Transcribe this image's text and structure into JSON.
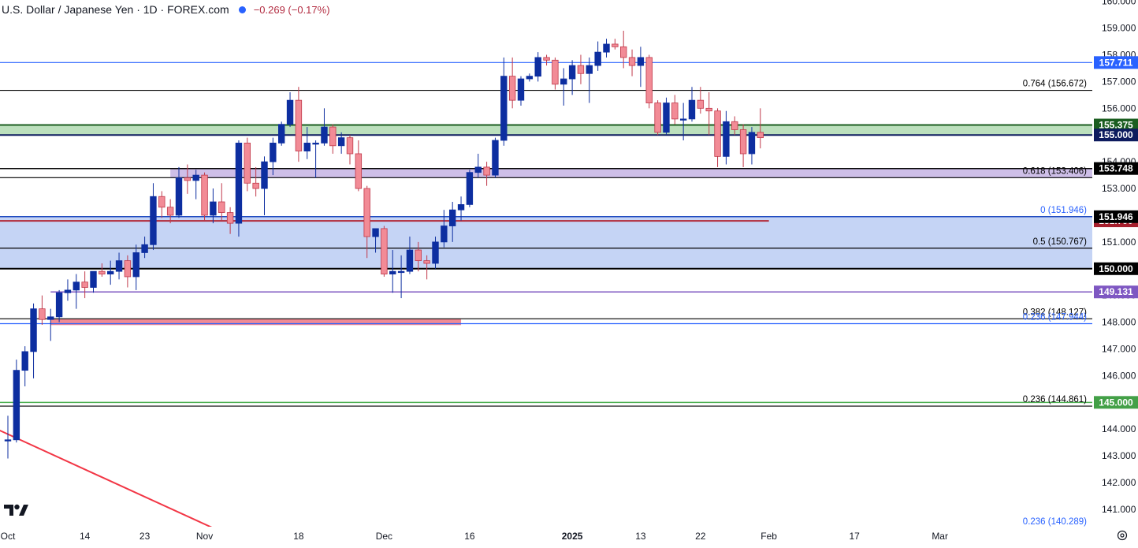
{
  "legend": {
    "title": "U.S. Dollar / Japanese Yen · 1D · FOREX.com",
    "change": "−0.269 (−0.17%)"
  },
  "logo": "TV",
  "chart_data": {
    "type": "candlestick",
    "y_range": [
      140.35,
      160.05
    ],
    "y_ticks": [
      141,
      142,
      143,
      144,
      145,
      146,
      147,
      148,
      149,
      150,
      151,
      152,
      153,
      154,
      155,
      156,
      157,
      158,
      159,
      160
    ],
    "x_labels": [
      {
        "label": "Oct",
        "date": "2024-10-01",
        "bold": false
      },
      {
        "label": "14",
        "date": "2024-10-14",
        "bold": false
      },
      {
        "label": "23",
        "date": "2024-10-23",
        "bold": false
      },
      {
        "label": "Nov",
        "date": "2024-11-01",
        "bold": false
      },
      {
        "label": "18",
        "date": "2024-11-18",
        "bold": false
      },
      {
        "label": "Dec",
        "date": "2024-12-02",
        "bold": false
      },
      {
        "label": "16",
        "date": "2024-12-16",
        "bold": false
      },
      {
        "label": "2025",
        "date": "2025-01-01",
        "bold": true
      },
      {
        "label": "13",
        "date": "2025-01-13",
        "bold": false
      },
      {
        "label": "22",
        "date": "2025-01-22",
        "bold": false
      },
      {
        "label": "Feb",
        "date": "2025-02-03",
        "bold": false
      },
      {
        "label": "17",
        "date": "2025-02-17",
        "bold": false
      },
      {
        "label": "Mar",
        "date": "2025-03-03",
        "bold": false
      }
    ],
    "candles": [
      {
        "o": 143.6,
        "h": 144.5,
        "l": 142.9,
        "c": 143.6
      },
      {
        "o": 143.6,
        "h": 146.6,
        "l": 143.5,
        "c": 146.2
      },
      {
        "o": 146.2,
        "h": 147.1,
        "l": 145.6,
        "c": 146.9
      },
      {
        "o": 146.9,
        "h": 148.7,
        "l": 145.9,
        "c": 148.5
      },
      {
        "o": 148.5,
        "h": 149.0,
        "l": 147.9,
        "c": 148.1
      },
      {
        "o": 148.1,
        "h": 148.5,
        "l": 147.3,
        "c": 148.2
      },
      {
        "o": 148.2,
        "h": 149.2,
        "l": 148.0,
        "c": 149.1
      },
      {
        "o": 149.1,
        "h": 149.6,
        "l": 148.8,
        "c": 149.2
      },
      {
        "o": 149.2,
        "h": 149.8,
        "l": 148.5,
        "c": 149.5
      },
      {
        "o": 149.5,
        "h": 149.9,
        "l": 148.9,
        "c": 149.3
      },
      {
        "o": 149.3,
        "h": 149.9,
        "l": 149.1,
        "c": 149.9
      },
      {
        "o": 149.9,
        "h": 150.2,
        "l": 149.7,
        "c": 149.8
      },
      {
        "o": 149.8,
        "h": 150.3,
        "l": 149.4,
        "c": 149.9
      },
      {
        "o": 149.9,
        "h": 150.6,
        "l": 149.6,
        "c": 150.3
      },
      {
        "o": 150.3,
        "h": 150.5,
        "l": 149.3,
        "c": 149.7
      },
      {
        "o": 149.7,
        "h": 150.9,
        "l": 149.2,
        "c": 150.6
      },
      {
        "o": 150.6,
        "h": 151.2,
        "l": 150.4,
        "c": 150.9
      },
      {
        "o": 150.9,
        "h": 153.2,
        "l": 150.7,
        "c": 152.7
      },
      {
        "o": 152.7,
        "h": 152.9,
        "l": 151.9,
        "c": 152.3
      },
      {
        "o": 152.3,
        "h": 152.6,
        "l": 151.7,
        "c": 152.0
      },
      {
        "o": 152.0,
        "h": 153.8,
        "l": 151.9,
        "c": 153.4
      },
      {
        "o": 153.4,
        "h": 153.9,
        "l": 152.8,
        "c": 153.3
      },
      {
        "o": 153.3,
        "h": 153.7,
        "l": 152.6,
        "c": 153.5
      },
      {
        "o": 153.5,
        "h": 153.6,
        "l": 151.8,
        "c": 152.0
      },
      {
        "o": 152.0,
        "h": 153.0,
        "l": 151.7,
        "c": 152.5
      },
      {
        "o": 152.5,
        "h": 153.2,
        "l": 151.8,
        "c": 152.1
      },
      {
        "o": 152.1,
        "h": 152.3,
        "l": 151.3,
        "c": 151.7
      },
      {
        "o": 151.7,
        "h": 154.8,
        "l": 151.2,
        "c": 154.7
      },
      {
        "o": 154.7,
        "h": 154.9,
        "l": 152.9,
        "c": 153.2
      },
      {
        "o": 153.2,
        "h": 153.8,
        "l": 152.7,
        "c": 153.0
      },
      {
        "o": 153.0,
        "h": 154.2,
        "l": 152.0,
        "c": 154.0
      },
      {
        "o": 154.0,
        "h": 154.9,
        "l": 153.5,
        "c": 154.7
      },
      {
        "o": 154.7,
        "h": 155.5,
        "l": 154.6,
        "c": 155.4
      },
      {
        "o": 155.4,
        "h": 156.6,
        "l": 155.3,
        "c": 156.3
      },
      {
        "o": 156.3,
        "h": 156.8,
        "l": 154.0,
        "c": 154.4
      },
      {
        "o": 154.4,
        "h": 155.3,
        "l": 154.1,
        "c": 154.7
      },
      {
        "o": 154.7,
        "h": 154.8,
        "l": 153.4,
        "c": 154.7
      },
      {
        "o": 154.7,
        "h": 156.0,
        "l": 154.6,
        "c": 155.3
      },
      {
        "o": 155.3,
        "h": 155.4,
        "l": 154.3,
        "c": 154.6
      },
      {
        "o": 154.6,
        "h": 155.1,
        "l": 154.3,
        "c": 154.9
      },
      {
        "o": 154.9,
        "h": 155.0,
        "l": 153.9,
        "c": 154.3
      },
      {
        "o": 154.3,
        "h": 154.8,
        "l": 152.9,
        "c": 153.0
      },
      {
        "o": 153.0,
        "h": 153.1,
        "l": 150.4,
        "c": 151.2
      },
      {
        "o": 151.2,
        "h": 151.5,
        "l": 150.6,
        "c": 151.5
      },
      {
        "o": 151.5,
        "h": 151.6,
        "l": 149.7,
        "c": 149.8
      },
      {
        "o": 149.8,
        "h": 150.7,
        "l": 149.1,
        "c": 149.9
      },
      {
        "o": 149.9,
        "h": 150.5,
        "l": 148.9,
        "c": 149.9
      },
      {
        "o": 149.9,
        "h": 151.2,
        "l": 149.8,
        "c": 150.7
      },
      {
        "o": 150.7,
        "h": 151.0,
        "l": 149.9,
        "c": 150.3
      },
      {
        "o": 150.3,
        "h": 150.5,
        "l": 149.6,
        "c": 150.2
      },
      {
        "o": 150.2,
        "h": 151.2,
        "l": 150.0,
        "c": 151.0
      },
      {
        "o": 151.0,
        "h": 152.2,
        "l": 150.8,
        "c": 151.6
      },
      {
        "o": 151.6,
        "h": 152.5,
        "l": 151.0,
        "c": 152.2
      },
      {
        "o": 152.2,
        "h": 152.7,
        "l": 151.8,
        "c": 152.4
      },
      {
        "o": 152.4,
        "h": 153.7,
        "l": 152.3,
        "c": 153.6
      },
      {
        "o": 153.6,
        "h": 154.3,
        "l": 153.4,
        "c": 153.8
      },
      {
        "o": 153.8,
        "h": 154.0,
        "l": 153.1,
        "c": 153.5
      },
      {
        "o": 153.5,
        "h": 154.9,
        "l": 153.4,
        "c": 154.8
      },
      {
        "o": 154.8,
        "h": 157.9,
        "l": 154.6,
        "c": 157.2
      },
      {
        "o": 157.2,
        "h": 157.9,
        "l": 156.0,
        "c": 156.3
      },
      {
        "o": 156.3,
        "h": 157.2,
        "l": 156.1,
        "c": 157.1
      },
      {
        "o": 157.1,
        "h": 157.3,
        "l": 157.0,
        "c": 157.2
      },
      {
        "o": 157.2,
        "h": 158.1,
        "l": 157.0,
        "c": 157.9
      },
      {
        "o": 157.9,
        "h": 158.0,
        "l": 157.6,
        "c": 157.8
      },
      {
        "o": 157.8,
        "h": 157.9,
        "l": 156.7,
        "c": 156.9
      },
      {
        "o": 156.9,
        "h": 157.5,
        "l": 156.1,
        "c": 157.1
      },
      {
        "o": 157.1,
        "h": 157.8,
        "l": 156.5,
        "c": 157.6
      },
      {
        "o": 157.6,
        "h": 158.0,
        "l": 156.9,
        "c": 157.3
      },
      {
        "o": 157.3,
        "h": 157.9,
        "l": 156.2,
        "c": 157.6
      },
      {
        "o": 157.6,
        "h": 158.5,
        "l": 157.4,
        "c": 158.1
      },
      {
        "o": 158.1,
        "h": 158.6,
        "l": 157.9,
        "c": 158.4
      },
      {
        "o": 158.4,
        "h": 158.6,
        "l": 158.2,
        "c": 158.3
      },
      {
        "o": 158.3,
        "h": 158.9,
        "l": 157.5,
        "c": 157.9
      },
      {
        "o": 157.9,
        "h": 158.2,
        "l": 157.2,
        "c": 157.6
      },
      {
        "o": 157.6,
        "h": 158.3,
        "l": 156.8,
        "c": 157.9
      },
      {
        "o": 157.9,
        "h": 158.0,
        "l": 156.0,
        "c": 156.2
      },
      {
        "o": 156.2,
        "h": 156.3,
        "l": 155.0,
        "c": 155.1
      },
      {
        "o": 155.1,
        "h": 156.4,
        "l": 155.0,
        "c": 156.2
      },
      {
        "o": 156.2,
        "h": 156.5,
        "l": 155.4,
        "c": 155.6
      },
      {
        "o": 155.6,
        "h": 156.2,
        "l": 154.8,
        "c": 155.6
      },
      {
        "o": 155.6,
        "h": 156.8,
        "l": 155.5,
        "c": 156.3
      },
      {
        "o": 156.3,
        "h": 156.8,
        "l": 155.8,
        "c": 156.0
      },
      {
        "o": 156.0,
        "h": 156.6,
        "l": 155.0,
        "c": 155.9
      },
      {
        "o": 155.9,
        "h": 156.0,
        "l": 153.8,
        "c": 154.2
      },
      {
        "o": 154.2,
        "h": 155.9,
        "l": 153.9,
        "c": 155.5
      },
      {
        "o": 155.5,
        "h": 155.7,
        "l": 155.0,
        "c": 155.2
      },
      {
        "o": 155.2,
        "h": 155.4,
        "l": 153.8,
        "c": 154.3
      },
      {
        "o": 154.3,
        "h": 155.3,
        "l": 153.9,
        "c": 155.1
      },
      {
        "o": 155.1,
        "h": 156.0,
        "l": 154.5,
        "c": 154.9
      }
    ],
    "price_lines": [
      {
        "name": "line-157-711",
        "price": 157.711,
        "color": "#2962ff",
        "width": 1.2,
        "tag": "157.711",
        "tag_bg": "#2962ff"
      },
      {
        "name": "line-155-375",
        "price": 155.375,
        "color": "#1b5e20",
        "width": 2,
        "tag": "155.375",
        "tag_bg": "#1b5e20"
      },
      {
        "name": "line-155-000",
        "price": 155.0,
        "color": "#0d1b5e",
        "width": 2,
        "tag": "155.000",
        "tag_bg": "#0d1b5e"
      },
      {
        "name": "line-151-790",
        "price": 151.79,
        "color": "#b22838",
        "width": 2,
        "tag": "151.790",
        "tag_bg": "#a61f2d",
        "x_end_date": "2025-02-01"
      },
      {
        "name": "line-149-131",
        "price": 149.131,
        "color": "#7e57c2",
        "width": 1.5,
        "tag": "149.131",
        "tag_bg": "#7e57c2",
        "x_start_date": "2024-10-08"
      },
      {
        "name": "line-145-000",
        "price": 145.0,
        "color": "#4caf50",
        "width": 1.5,
        "tag": "145.000",
        "tag_bg": "#43a047"
      },
      {
        "name": "line-150-000",
        "price": 150.0,
        "color": "#000000",
        "width": 2,
        "tag": "150.000",
        "tag_bg": "#000000"
      },
      {
        "name": "line-151-946",
        "price": 151.946,
        "color": "#000000",
        "width": 1.5,
        "tag": "151.946",
        "tag_bg": "#000000"
      },
      {
        "name": "line-153-748",
        "price": 153.748,
        "color": "#000000",
        "width": 1.5,
        "tag": "153.748",
        "tag_bg": "#000000"
      }
    ],
    "fib_levels": [
      {
        "name": "fib-0-764",
        "price": 156.672,
        "color": "#000000",
        "label": "0.764 (156.672)"
      },
      {
        "name": "fib-0-618",
        "price": 153.406,
        "color": "#000000",
        "label": "0.618 (153.406)"
      },
      {
        "name": "fib-0",
        "price": 151.946,
        "color": "#2962ff",
        "label": "0 (151.946)"
      },
      {
        "name": "fib-0-5",
        "price": 150.767,
        "color": "#000000",
        "label": "0.5 (150.767)"
      },
      {
        "name": "fib-0-382",
        "price": 148.127,
        "color": "#000000",
        "label": "0.382 (148.127)"
      },
      {
        "name": "fib-0-236-a",
        "price": 147.944,
        "color": "#2962ff",
        "label": "0.236 (147.944)"
      },
      {
        "name": "fib-0-236-b",
        "price": 144.861,
        "color": "#000000",
        "label": "0.236 (144.861)"
      },
      {
        "name": "fib-0-236-c",
        "price": 140.289,
        "color": "#2962ff",
        "label": "0.236 (140.289)"
      }
    ],
    "zones": [
      {
        "name": "zone-green",
        "from": 155.0,
        "to": 155.375,
        "color": "#a5d6a7",
        "opacity": 0.75
      },
      {
        "name": "zone-purple",
        "from": 153.406,
        "to": 153.748,
        "color": "#b39ddb",
        "opacity": 0.65,
        "x_start_date": "2024-10-26"
      },
      {
        "name": "zone-blue",
        "from": 150.0,
        "to": 151.946,
        "color": "#bbcdf3",
        "opacity": 0.85
      }
    ],
    "red_bar": {
      "price_from": 147.95,
      "price_to": 148.06,
      "start_date": "2024-10-08",
      "end_date": "2024-12-13",
      "color": "#ef8a95"
    },
    "trendline": {
      "start": {
        "date": "2024-09-26",
        "price": 144.25
      },
      "end": {
        "date": "2024-11-02",
        "price": 140.3
      },
      "color": "#f23645"
    }
  }
}
